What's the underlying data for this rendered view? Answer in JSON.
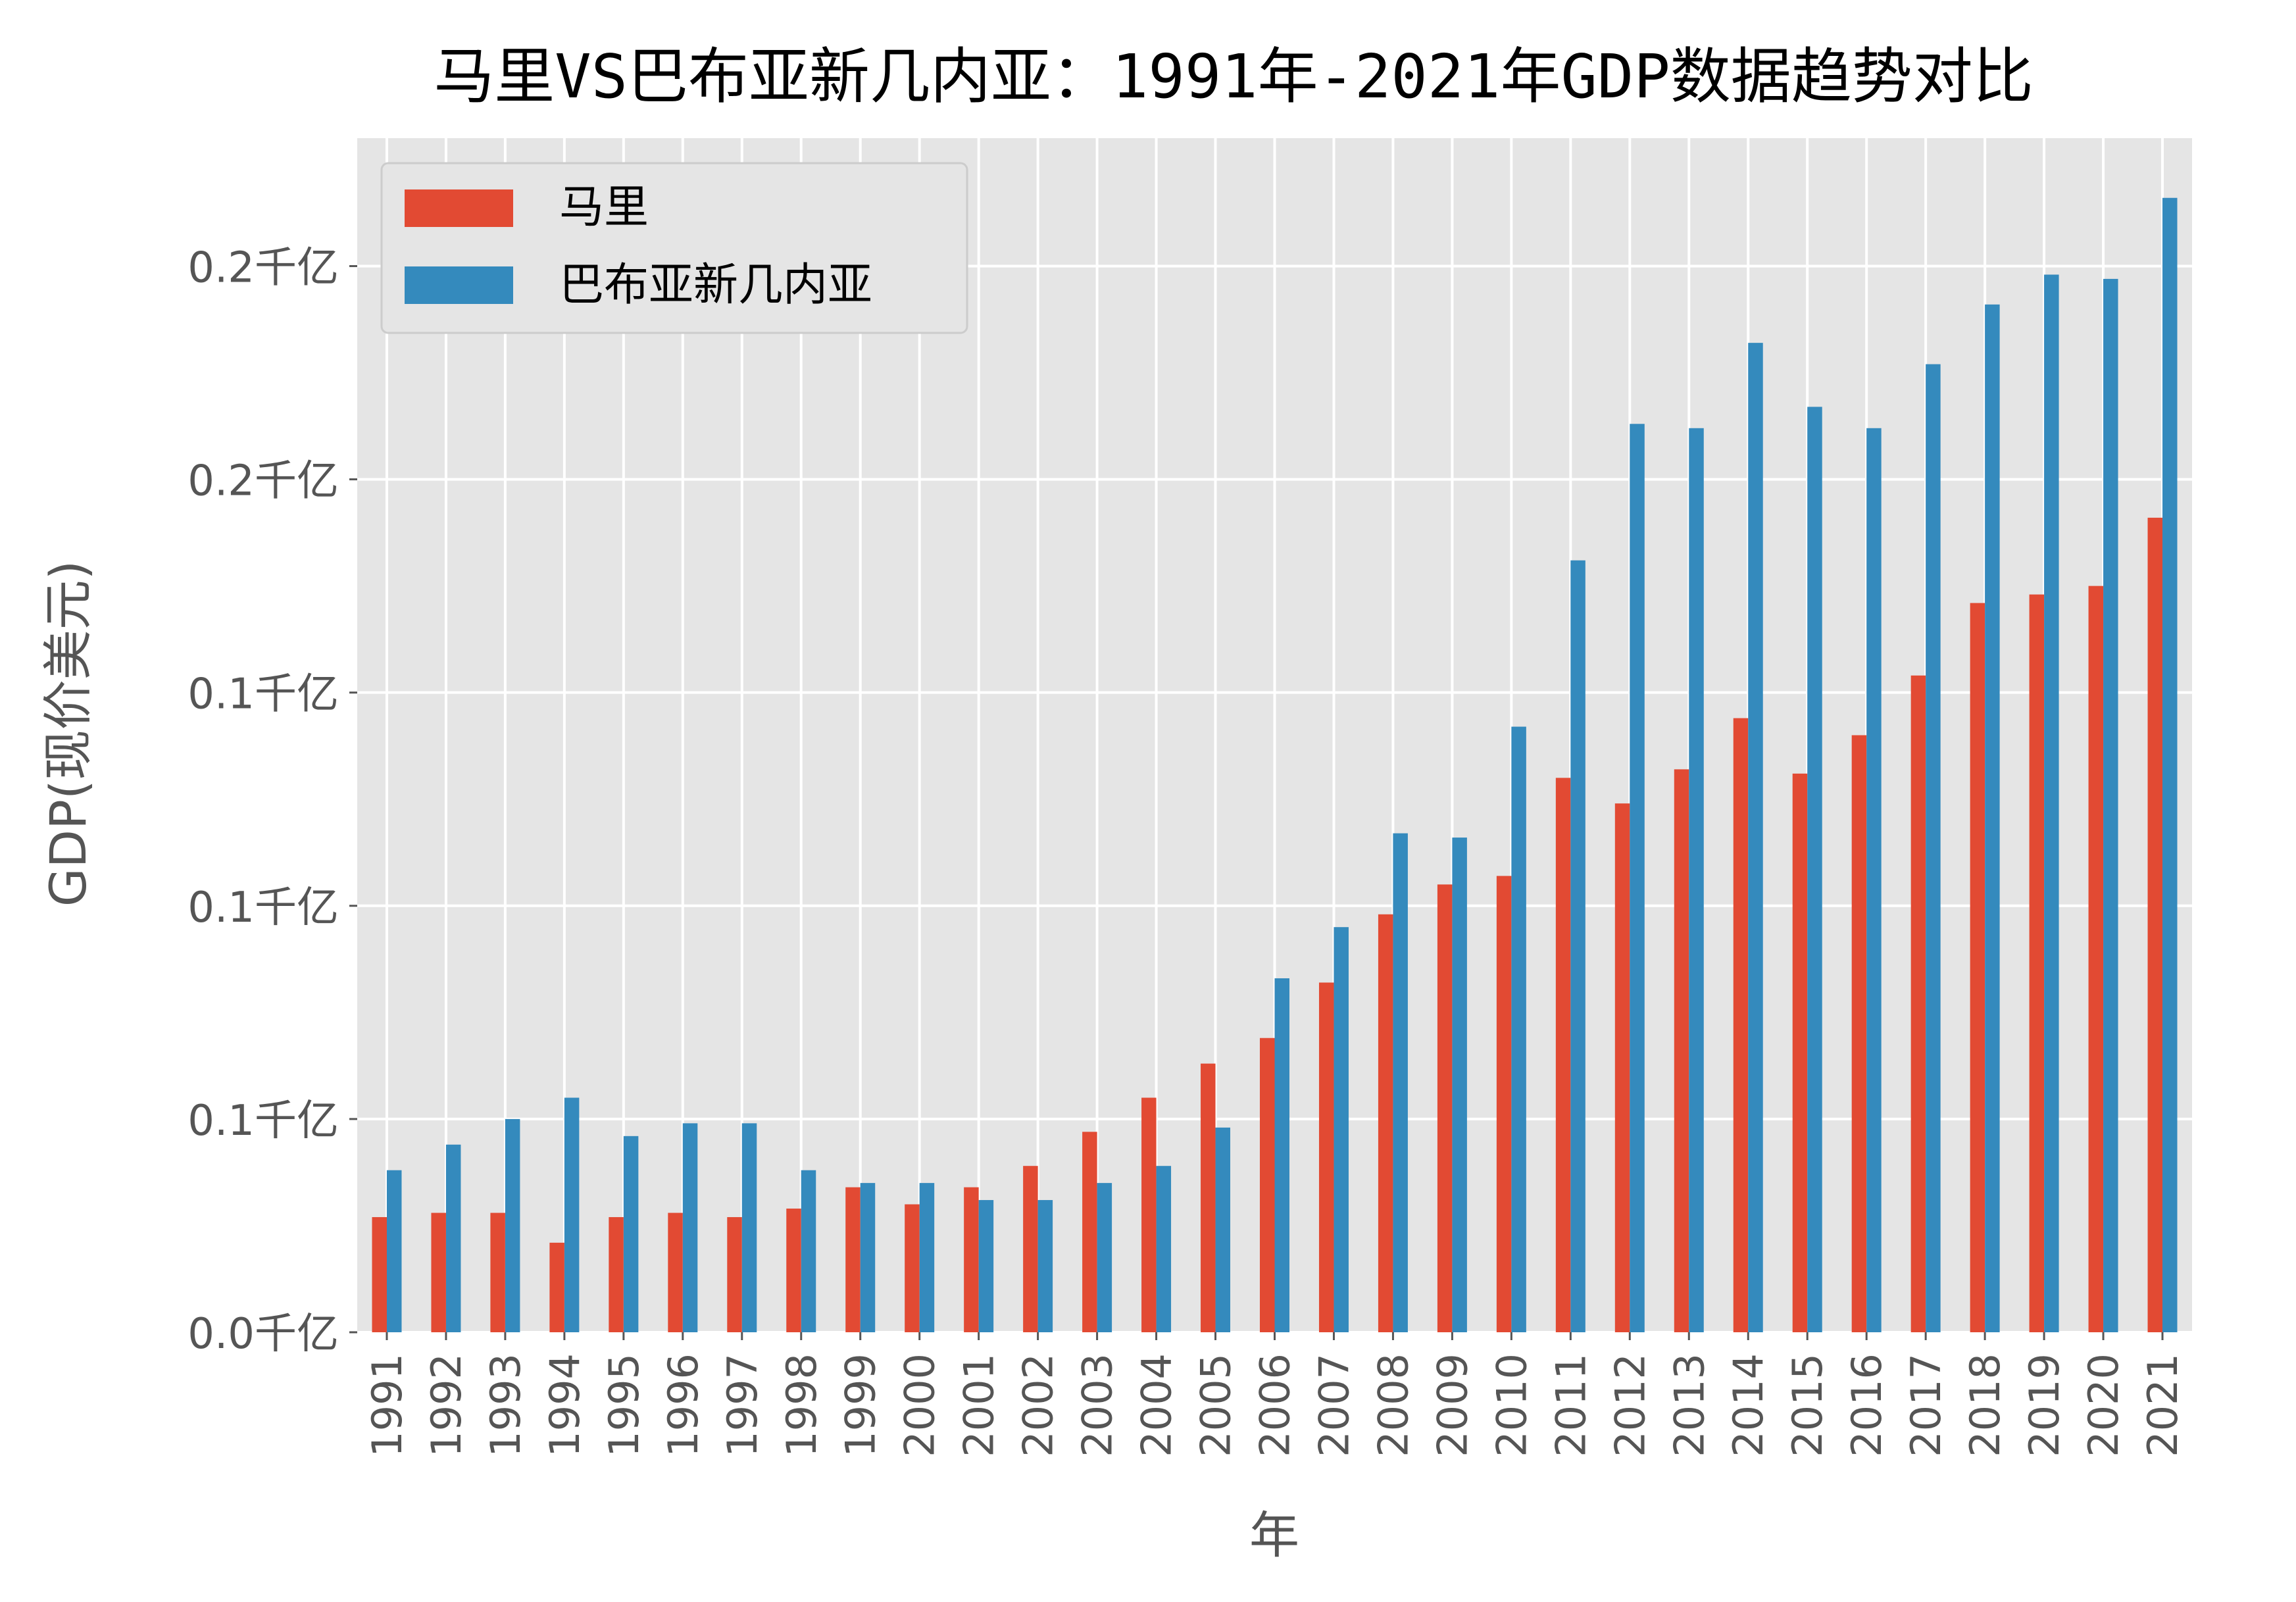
{
  "chart_data": {
    "type": "bar",
    "title": "马里VS巴布亚新几内亚：1991年-2021年GDP数据趋势对比",
    "xlabel": "年",
    "ylabel": "GDP(现价美元)",
    "categories": [
      "1991",
      "1992",
      "1993",
      "1994",
      "1995",
      "1996",
      "1997",
      "1998",
      "1999",
      "2000",
      "2001",
      "2002",
      "2003",
      "2004",
      "2005",
      "2006",
      "2007",
      "2008",
      "2009",
      "2010",
      "2011",
      "2012",
      "2013",
      "2014",
      "2015",
      "2016",
      "2017",
      "2018",
      "2019",
      "2020",
      "2021"
    ],
    "series": [
      {
        "name": "马里",
        "color": "#E24A33",
        "values": [
          2.7,
          2.8,
          2.8,
          2.1,
          2.7,
          2.8,
          2.7,
          2.9,
          3.4,
          3.0,
          3.4,
          3.9,
          4.7,
          5.5,
          6.3,
          6.9,
          8.2,
          9.8,
          10.5,
          10.7,
          13.0,
          12.4,
          13.2,
          14.4,
          13.1,
          14.0,
          15.4,
          17.1,
          17.3,
          17.5,
          19.1
        ]
      },
      {
        "name": "巴布亚新几内亚",
        "color": "#348ABD",
        "values": [
          3.8,
          4.4,
          5.0,
          5.5,
          4.6,
          4.9,
          4.9,
          3.8,
          3.5,
          3.5,
          3.1,
          3.1,
          3.5,
          3.9,
          4.8,
          8.3,
          9.5,
          11.7,
          11.6,
          14.2,
          18.1,
          21.3,
          21.2,
          23.2,
          21.7,
          21.2,
          22.7,
          24.1,
          24.8,
          24.7,
          26.6
        ]
      }
    ],
    "yticks": [
      0,
      5,
      10,
      15,
      20,
      25
    ],
    "ytick_labels": [
      "0.0千亿",
      "0.1千亿",
      "0.1千亿",
      "0.1千亿",
      "0.2千亿",
      "0.2千亿"
    ],
    "ylim": [
      0,
      28
    ],
    "grid": true,
    "legend_position": "upper-left"
  }
}
